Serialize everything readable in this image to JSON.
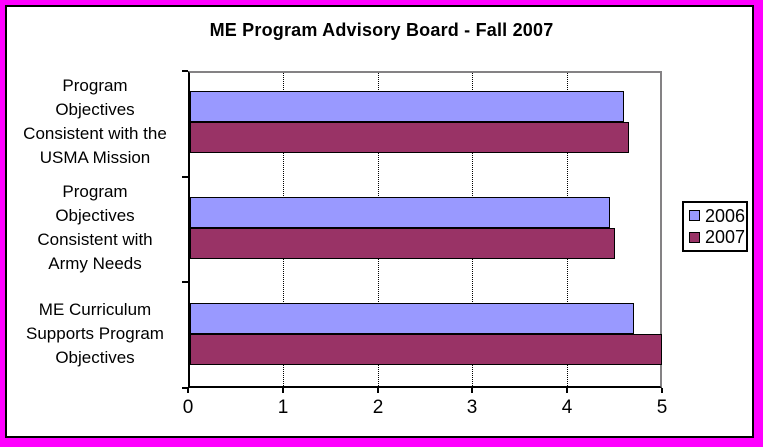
{
  "frame": {
    "border_color": "#FF00FF",
    "inner_border_color": "#000000",
    "background": "#FFFFFF"
  },
  "chart_data": {
    "type": "bar",
    "orientation": "horizontal",
    "title": "ME Program Advisory Board - Fall 2007",
    "categories": [
      {
        "label": "Program Objectives Consistent with the USMA Mission",
        "lines": [
          "Program",
          "Objectives",
          "Consistent with the",
          "USMA Mission"
        ]
      },
      {
        "label": "Program Objectives Consistent with Army Needs",
        "lines": [
          "Program",
          "Objectives",
          "Consistent with",
          "Army Needs"
        ]
      },
      {
        "label": "ME Curriculum Supports Program Objectives",
        "lines": [
          "ME Curriculum",
          "Supports Program",
          "Objectives"
        ]
      }
    ],
    "series": [
      {
        "name": "2006",
        "color": "#9999FF",
        "values": [
          4.6,
          4.45,
          4.7
        ]
      },
      {
        "name": "2007",
        "color": "#993366",
        "values": [
          4.65,
          4.5,
          5.0
        ]
      }
    ],
    "xlabel": "",
    "ylabel": "",
    "xlim": [
      0,
      5
    ],
    "xticks": [
      "0",
      "1",
      "2",
      "3",
      "4",
      "5"
    ],
    "gridlines_at": [
      1,
      2,
      3,
      4
    ],
    "grid_style": "vertical-dotted",
    "legend_position": "right",
    "plot_border_color": "#848284",
    "axis_color": "#000000"
  }
}
